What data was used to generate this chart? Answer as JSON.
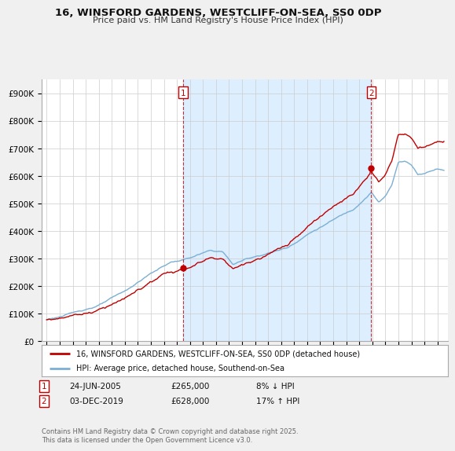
{
  "title_line1": "16, WINSFORD GARDENS, WESTCLIFF-ON-SEA, SS0 0DP",
  "title_line2": "Price paid vs. HM Land Registry's House Price Index (HPI)",
  "ytick_labels": [
    "£0",
    "£100K",
    "£200K",
    "£300K",
    "£400K",
    "£500K",
    "£600K",
    "£700K",
    "£800K",
    "£900K"
  ],
  "yticks": [
    0,
    100000,
    200000,
    300000,
    400000,
    500000,
    600000,
    700000,
    800000,
    900000
  ],
  "hpi_color": "#7bafd4",
  "price_color": "#c00000",
  "shade_color": "#ddeeff",
  "marker1_date": 2005.47,
  "marker1_price": 265000,
  "marker1_label": "24-JUN-2005",
  "marker1_text": "£265,000",
  "marker1_note": "8% ↓ HPI",
  "marker2_date": 2019.92,
  "marker2_price": 628000,
  "marker2_label": "03-DEC-2019",
  "marker2_text": "£628,000",
  "marker2_note": "17% ↑ HPI",
  "legend_line1": "16, WINSFORD GARDENS, WESTCLIFF-ON-SEA, SS0 0DP (detached house)",
  "legend_line2": "HPI: Average price, detached house, Southend-on-Sea",
  "footer": "Contains HM Land Registry data © Crown copyright and database right 2025.\nThis data is licensed under the Open Government Licence v3.0.",
  "bg_color": "#f0f0f0",
  "plot_bg": "#ffffff",
  "grid_color": "#cccccc",
  "xlim": [
    1994.6,
    2025.8
  ],
  "ylim": [
    0,
    950000
  ]
}
